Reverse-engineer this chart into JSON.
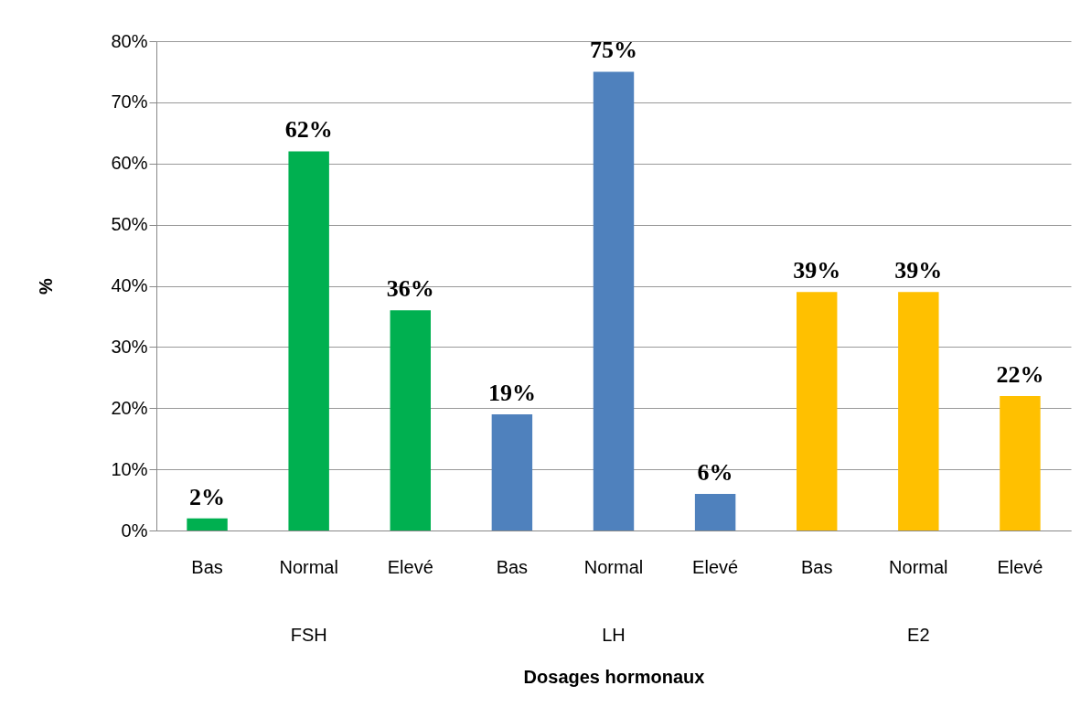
{
  "chart_data": {
    "type": "bar",
    "xlabel": "Dosages hormonaux",
    "ylabel": "%",
    "categories": [
      "Bas",
      "Normal",
      "Elevé",
      "Bas",
      "Normal",
      "Elevé",
      "Bas",
      "Normal",
      "Elevé"
    ],
    "series": [
      {
        "color": "#00b050",
        "values": [
          2,
          62,
          36,
          null,
          null,
          null,
          null,
          null,
          null
        ],
        "value_labels": [
          "2%",
          "62%",
          "36%",
          null,
          null,
          null,
          null,
          null,
          null
        ]
      },
      {
        "color": "#4f81bd",
        "values": [
          null,
          null,
          null,
          19,
          75,
          6,
          null,
          null,
          null
        ],
        "value_labels": [
          null,
          null,
          null,
          "19%",
          "75%",
          "6%",
          null,
          null,
          null
        ]
      },
      {
        "color": "#ffc000",
        "values": [
          null,
          null,
          null,
          null,
          null,
          null,
          39,
          39,
          22
        ],
        "value_labels": [
          null,
          null,
          null,
          null,
          null,
          null,
          "39%",
          "39%",
          "22%"
        ]
      }
    ],
    "ylim": [
      0,
      80
    ],
    "yticks": [
      {
        "value": 0,
        "label": "0%"
      },
      {
        "value": 10,
        "label": "10%"
      },
      {
        "value": 20,
        "label": "20%"
      },
      {
        "value": 30,
        "label": "30%"
      },
      {
        "value": 40,
        "label": "40%"
      },
      {
        "value": 50,
        "label": "50%"
      },
      {
        "value": 60,
        "label": "60%"
      },
      {
        "value": 70,
        "label": "70%"
      },
      {
        "value": 80,
        "label": "80%"
      }
    ],
    "grid": "y",
    "annotations": [
      "FSH",
      "LH",
      "E2"
    ]
  }
}
